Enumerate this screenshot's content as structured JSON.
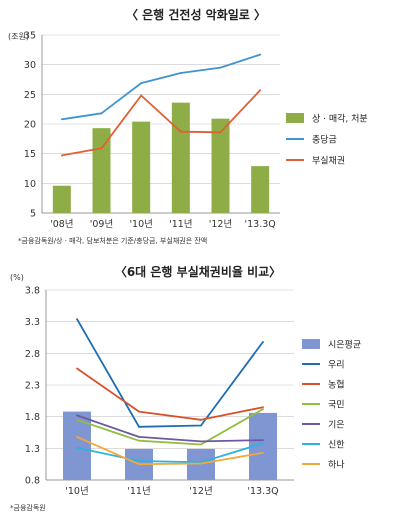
{
  "chart_data": [
    {
      "type": "bar",
      "title": "〈 은행 건전성 악화일로 〉",
      "unit": "(조원)",
      "categories": [
        "'08년",
        "'09년",
        "'10년",
        "'11년",
        "'12년",
        "'13.3Q"
      ],
      "ylim": [
        5,
        35
      ],
      "yticks": [
        "5",
        "10",
        "15",
        "20",
        "25",
        "30",
        "35"
      ],
      "grid": true,
      "legend_position": "right",
      "series": [
        {
          "name": "상 · 매각, 처분",
          "type": "bar",
          "color": "#8fad47",
          "values": [
            9.6,
            19.3,
            20.4,
            23.6,
            20.9,
            12.9
          ]
        },
        {
          "name": "충당금",
          "type": "line",
          "color": "#3f93cf",
          "values": [
            20.8,
            21.8,
            26.9,
            28.6,
            29.5,
            31.7
          ]
        },
        {
          "name": "부실채권",
          "type": "line",
          "color": "#e06036",
          "values": [
            14.7,
            15.9,
            24.8,
            18.7,
            18.6,
            25.7
          ]
        }
      ],
      "note": "*금융감독원/상 · 매각, 담보처분은 기준/충당금, 부실채권은 잔액"
    },
    {
      "type": "bar",
      "title": "〈6대 은행 부실채권비율 비교〉",
      "unit": "(%)",
      "categories": [
        "'10년",
        "'11년",
        "'12년",
        "'13.3Q"
      ],
      "ylim": [
        0.8,
        3.8
      ],
      "yticks": [
        "0.8",
        "1.3",
        "1.8",
        "2.3",
        "2.8",
        "3.3",
        "3.8"
      ],
      "grid": true,
      "legend_position": "right",
      "series": [
        {
          "name": "시은평균",
          "type": "bar",
          "color": "#7f96d2",
          "values": [
            1.88,
            1.29,
            1.29,
            1.86
          ]
        },
        {
          "name": "우리",
          "type": "line",
          "color": "#1f6db0",
          "values": [
            3.34,
            1.64,
            1.66,
            2.98
          ]
        },
        {
          "name": "농협",
          "type": "line",
          "color": "#d9512c",
          "values": [
            2.56,
            1.88,
            1.75,
            1.95
          ]
        },
        {
          "name": "국민",
          "type": "line",
          "color": "#8fbf3f",
          "values": [
            1.75,
            1.42,
            1.36,
            1.92
          ]
        },
        {
          "name": "기은",
          "type": "line",
          "color": "#7058a0",
          "values": [
            1.82,
            1.48,
            1.41,
            1.43
          ]
        },
        {
          "name": "신한",
          "type": "line",
          "color": "#2bb3e0",
          "values": [
            1.31,
            1.1,
            1.08,
            1.38
          ]
        },
        {
          "name": "하나",
          "type": "line",
          "color": "#f3a93a",
          "values": [
            1.48,
            1.05,
            1.06,
            1.23
          ]
        }
      ],
      "note": "*금융감독원"
    }
  ]
}
